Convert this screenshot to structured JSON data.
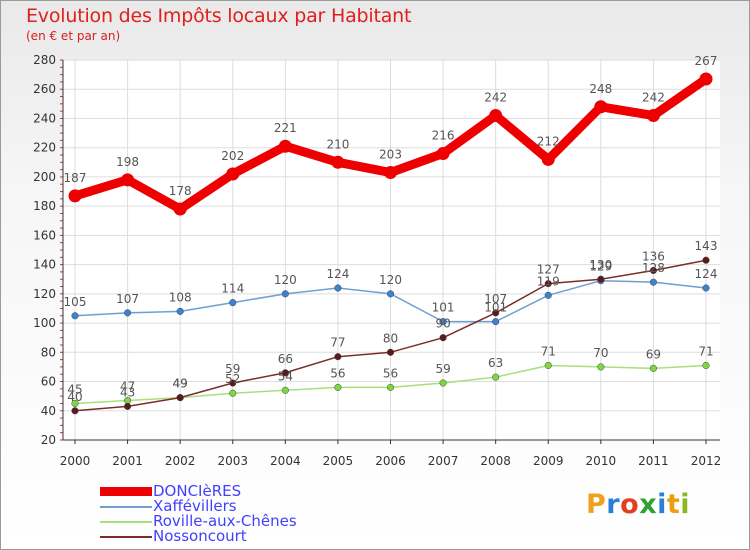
{
  "chart_data": {
    "type": "line",
    "title": "Evolution des Impôts locaux par Habitant",
    "subtitle": "(en € et par an)",
    "x": [
      "2000",
      "2001",
      "2002",
      "2003",
      "2004",
      "2005",
      "2006",
      "2007",
      "2008",
      "2009",
      "2010",
      "2011",
      "2012"
    ],
    "y_ticks": [
      "20",
      "40",
      "60",
      "80",
      "100",
      "120",
      "140",
      "160",
      "180",
      "200",
      "220",
      "240",
      "260",
      "280"
    ],
    "ylim": [
      20,
      280
    ],
    "grid": true,
    "legend_position": "bottom-left",
    "series": [
      {
        "name": "DONCIèRES",
        "color": "#ee0000",
        "values": [
          187,
          198,
          178,
          202,
          221,
          210,
          203,
          216,
          242,
          212,
          248,
          242,
          267
        ],
        "labels": [
          "187",
          "198",
          "178",
          "202",
          "221",
          "210",
          "203",
          "216",
          "242",
          "212",
          "248",
          "242",
          "267"
        ]
      },
      {
        "name": "Xaffévillers",
        "color": "#6f9fd0",
        "marker": "#3d82d0",
        "values": [
          105,
          107,
          108,
          114,
          120,
          124,
          120,
          101,
          101,
          119,
          129,
          128,
          124
        ],
        "labels": [
          "105",
          "107",
          "108",
          "114",
          "120",
          "124",
          "120",
          "101",
          "101",
          "119",
          "129",
          "128",
          "124"
        ]
      },
      {
        "name": "Roville-aux-Chênes",
        "color": "#a8e07a",
        "marker": "#7ed640",
        "values": [
          45,
          47,
          49,
          52,
          54,
          56,
          56,
          59,
          63,
          71,
          70,
          69,
          71
        ],
        "labels": [
          "45",
          "47",
          "49",
          "52",
          "54",
          "56",
          "56",
          "59",
          "63",
          "71",
          "70",
          "69",
          "71"
        ]
      },
      {
        "name": "Nossoncourt",
        "color": "#7a2d2d",
        "marker": "#5a1a1a",
        "values": [
          40,
          43,
          49,
          59,
          66,
          77,
          80,
          90,
          107,
          127,
          130,
          136,
          143
        ],
        "labels": [
          "40",
          "43",
          "49",
          "59",
          "66",
          "77",
          "80",
          "90",
          "107",
          "127",
          "130",
          "136",
          "143"
        ]
      }
    ]
  },
  "logo": "Proxiti"
}
